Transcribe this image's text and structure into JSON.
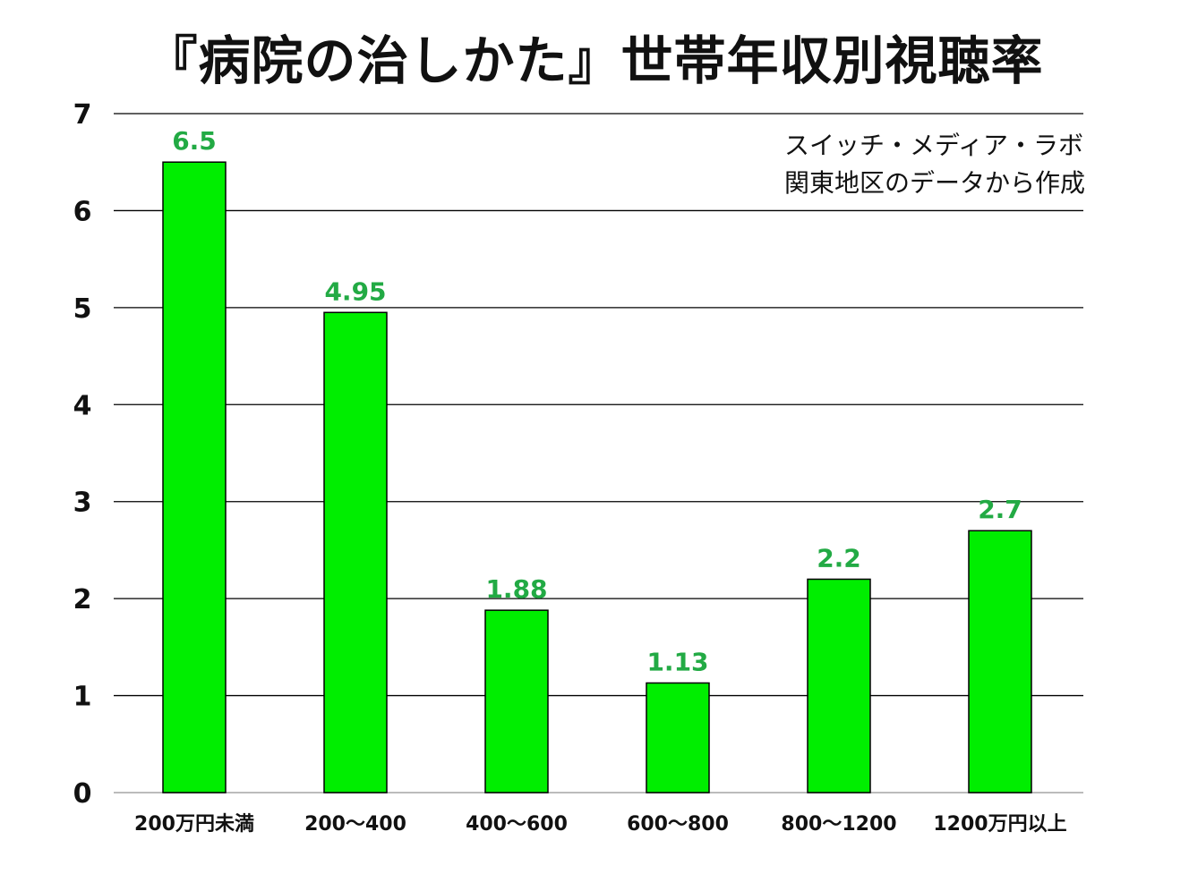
{
  "chart_data": {
    "type": "bar",
    "title": "『病院の治しかた』世帯年収別視聴率",
    "note_lines": [
      "スイッチ・メディア・ラボ",
      "関東地区のデータから作成"
    ],
    "categories": [
      "200万円未満",
      "200～400",
      "400～600",
      "600～800",
      "800～1200",
      "1200万円以上"
    ],
    "values": [
      6.5,
      4.95,
      1.88,
      1.13,
      2.2,
      2.7
    ],
    "value_labels": [
      "6.5",
      "4.95",
      "1.88",
      "1.13",
      "2.2",
      "2.7"
    ],
    "y_ticks": [
      "0",
      "1",
      "2",
      "3",
      "4",
      "5",
      "6",
      "7"
    ],
    "ylim": [
      0,
      7
    ],
    "xlabel": "",
    "ylabel": "",
    "grid": true,
    "bar_color": "#00ee00",
    "label_color": "#22aa44"
  }
}
